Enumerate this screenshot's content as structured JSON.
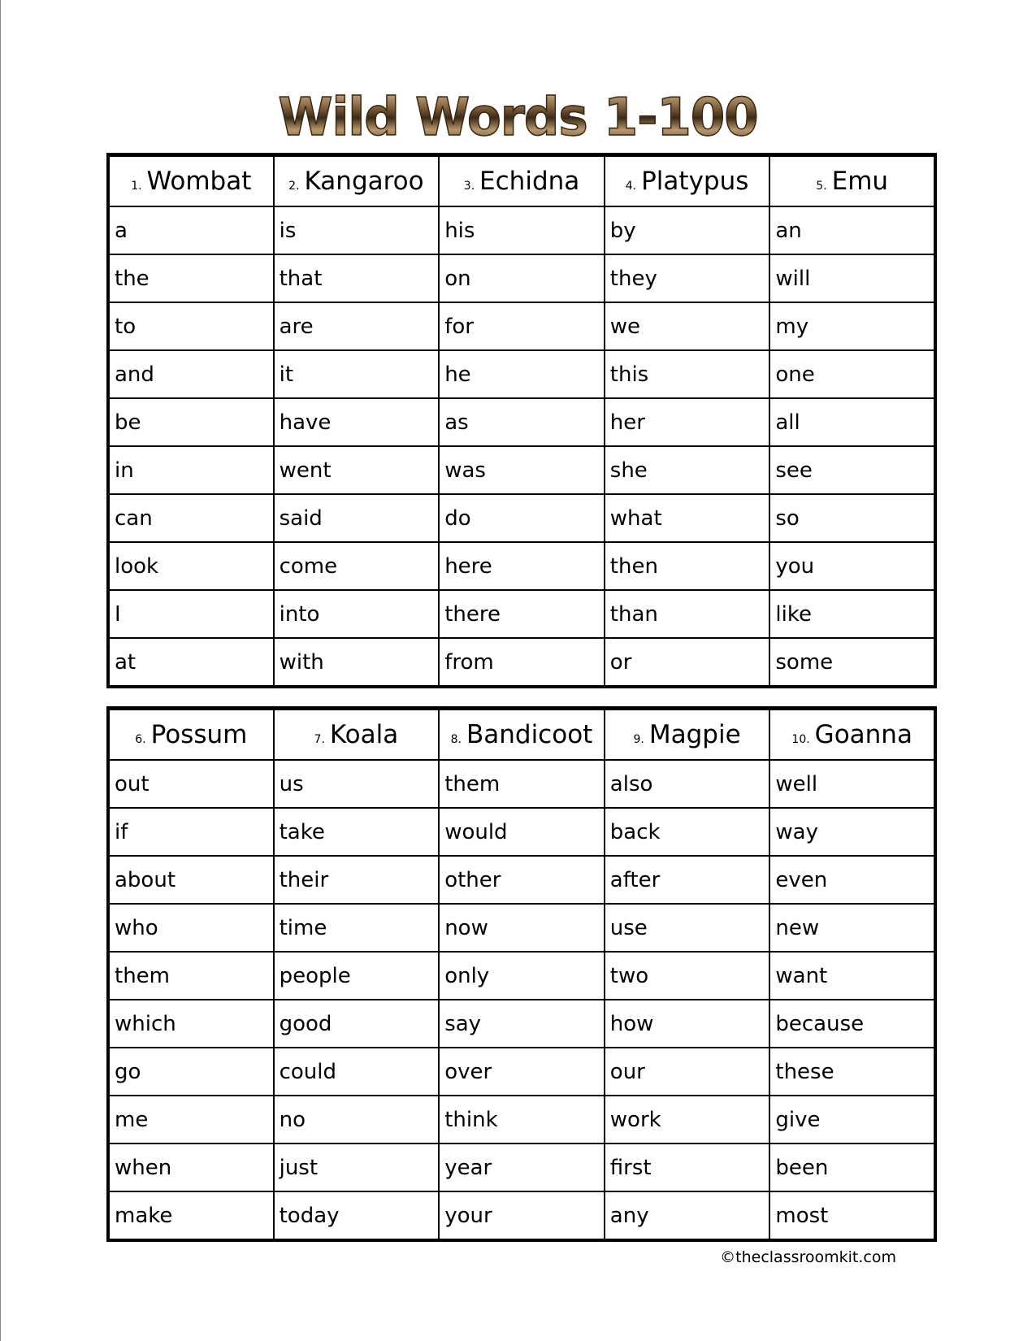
{
  "title": "Wild Words 1-100",
  "tables": [
    {
      "headers": [
        {
          "num": "1.",
          "name": "Wombat"
        },
        {
          "num": "2.",
          "name": "Kangaroo"
        },
        {
          "num": "3.",
          "name": "Echidna"
        },
        {
          "num": "4.",
          "name": "Platypus"
        },
        {
          "num": "5.",
          "name": "Emu"
        }
      ],
      "rows": [
        [
          "a",
          "is",
          "his",
          "by",
          "an"
        ],
        [
          "the",
          "that",
          "on",
          "they",
          "will"
        ],
        [
          "to",
          "are",
          "for",
          "we",
          "my"
        ],
        [
          "and",
          "it",
          "he",
          "this",
          "one"
        ],
        [
          "be",
          "have",
          "as",
          "her",
          "all"
        ],
        [
          "in",
          "went",
          "was",
          "she",
          "see"
        ],
        [
          "can",
          "said",
          "do",
          "what",
          "so"
        ],
        [
          "look",
          "come",
          "here",
          "then",
          "you"
        ],
        [
          "I",
          "into",
          "there",
          "than",
          "like"
        ],
        [
          "at",
          "with",
          "from",
          "or",
          "some"
        ]
      ]
    },
    {
      "headers": [
        {
          "num": "6.",
          "name": "Possum"
        },
        {
          "num": "7.",
          "name": "Koala"
        },
        {
          "num": "8.",
          "name": "Bandicoot"
        },
        {
          "num": "9.",
          "name": "Magpie"
        },
        {
          "num": "10.",
          "name": "Goanna"
        }
      ],
      "rows": [
        [
          "out",
          "us",
          "them",
          "also",
          "well"
        ],
        [
          "if",
          "take",
          "would",
          "back",
          "way"
        ],
        [
          "about",
          "their",
          "other",
          "after",
          "even"
        ],
        [
          "who",
          "time",
          "now",
          "use",
          "new"
        ],
        [
          "them",
          "people",
          "only",
          "two",
          "want"
        ],
        [
          "which",
          "good",
          "say",
          "how",
          "because"
        ],
        [
          "go",
          "could",
          "over",
          "our",
          "these"
        ],
        [
          "me",
          "no",
          "think",
          "work",
          "give"
        ],
        [
          "when",
          "just",
          "year",
          "first",
          "been"
        ],
        [
          "make",
          "today",
          "your",
          "any",
          "most"
        ]
      ]
    }
  ],
  "footer": "©theclassroomkit.com"
}
